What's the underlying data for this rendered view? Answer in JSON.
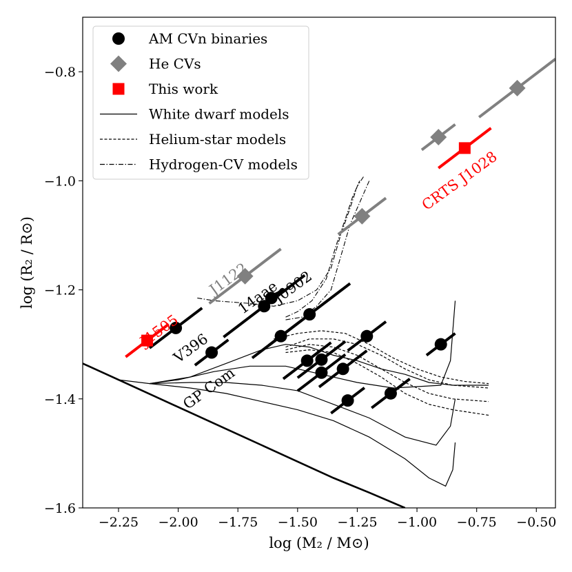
{
  "chart_data": {
    "type": "scatter",
    "title": "",
    "xlabel": "log (M₂ / M⊙)",
    "ylabel": "log (R₂ / R⊙)",
    "xlim": [
      -2.4,
      -0.42
    ],
    "ylim": [
      -1.6,
      -0.7
    ],
    "x_ticks": [
      -2.25,
      -2.0,
      -1.75,
      -1.5,
      -1.25,
      -1.0,
      -0.75,
      -0.5
    ],
    "x_tick_labels": [
      "−2.25",
      "−2.00",
      "−1.75",
      "−1.50",
      "−1.25",
      "−1.00",
      "−0.75",
      "−0.50"
    ],
    "y_ticks": [
      -1.6,
      -1.4,
      -1.2,
      -1.0,
      -0.8
    ],
    "y_tick_labels": [
      "−1.6",
      "−1.4",
      "−1.2",
      "−1.0",
      "−0.8"
    ],
    "legend": {
      "placement": "top-left",
      "entries": [
        {
          "label": "AM CVn binaries",
          "marker": "circle",
          "color": "#000000"
        },
        {
          "label": "He CVs",
          "marker": "diamond",
          "color": "#808080"
        },
        {
          "label": "This work",
          "marker": "square",
          "color": "#ff0000"
        },
        {
          "label": "White dwarf models",
          "line": "solid",
          "color": "#000000"
        },
        {
          "label": "Helium-star models",
          "line": "dashed",
          "color": "#000000"
        },
        {
          "label": "Hydrogen-CV models",
          "line": "dashdot",
          "color": "#000000"
        }
      ]
    },
    "series": [
      {
        "name": "AM CVn binaries",
        "marker": "circle",
        "color": "#000000",
        "points": [
          {
            "x": -2.01,
            "y": -1.27,
            "err": 0.11
          },
          {
            "x": -1.86,
            "y": -1.315,
            "err": 0.07
          },
          {
            "x": -1.64,
            "y": -1.23,
            "err": 0.17
          },
          {
            "x": -1.61,
            "y": -1.215,
            "err": 0.05
          },
          {
            "x": -1.57,
            "y": -1.285,
            "err": 0.12
          },
          {
            "x": -1.45,
            "y": -1.245,
            "err": 0.17
          },
          {
            "x": -1.46,
            "y": -1.33,
            "err": 0.1
          },
          {
            "x": -1.4,
            "y": -1.328,
            "err": 0.1
          },
          {
            "x": -1.4,
            "y": -1.352,
            "err": 0.1
          },
          {
            "x": -1.31,
            "y": -1.345,
            "err": 0.1
          },
          {
            "x": -1.21,
            "y": -1.285,
            "err": 0.08
          },
          {
            "x": -1.29,
            "y": -1.403,
            "err": 0.07
          },
          {
            "x": -1.11,
            "y": -1.39,
            "err": 0.08
          },
          {
            "x": -0.9,
            "y": -1.3,
            "err": 0.06
          }
        ]
      },
      {
        "name": "He CVs",
        "marker": "diamond",
        "color": "#808080",
        "points": [
          {
            "x": -1.72,
            "y": -1.175,
            "err": 0.15
          },
          {
            "x": -1.23,
            "y": -1.065,
            "err": 0.1
          },
          {
            "x": -0.91,
            "y": -0.92,
            "err": 0.07
          },
          {
            "x": -0.58,
            "y": -0.83,
            "err": 0.16
          }
        ]
      },
      {
        "name": "This work",
        "marker": "square",
        "color": "#ff0000",
        "points": [
          {
            "x": -2.13,
            "y": -1.293,
            "err": 0.09
          },
          {
            "x": -0.8,
            "y": -0.94,
            "err": 0.11
          }
        ]
      }
    ],
    "models": {
      "white_dwarf": [
        [
          [
            -2.4,
            -1.335
          ],
          [
            -2.25,
            -1.365
          ],
          [
            -2.1,
            -1.395
          ],
          [
            -1.95,
            -1.425
          ],
          [
            -1.8,
            -1.455
          ],
          [
            -1.65,
            -1.485
          ],
          [
            -1.5,
            -1.515
          ],
          [
            -1.35,
            -1.545
          ],
          [
            -1.2,
            -1.572
          ],
          [
            -1.05,
            -1.6
          ]
        ],
        [
          [
            -2.25,
            -1.365
          ],
          [
            -2.12,
            -1.372
          ],
          [
            -2.0,
            -1.365
          ],
          [
            -1.85,
            -1.35
          ],
          [
            -1.7,
            -1.34
          ],
          [
            -1.55,
            -1.34
          ],
          [
            -1.4,
            -1.355
          ],
          [
            -1.25,
            -1.37
          ],
          [
            -1.1,
            -1.38
          ],
          [
            -0.9,
            -1.375
          ],
          [
            -0.86,
            -1.33
          ],
          [
            -0.84,
            -1.22
          ]
        ],
        [
          [
            -2.12,
            -1.372
          ],
          [
            -1.95,
            -1.37
          ],
          [
            -1.8,
            -1.37
          ],
          [
            -1.65,
            -1.375
          ],
          [
            -1.5,
            -1.385
          ],
          [
            -1.35,
            -1.41
          ],
          [
            -1.2,
            -1.435
          ],
          [
            -1.05,
            -1.47
          ],
          [
            -0.92,
            -1.485
          ],
          [
            -0.86,
            -1.45
          ],
          [
            -0.84,
            -1.4
          ]
        ],
        [
          [
            -2.12,
            -1.372
          ],
          [
            -1.95,
            -1.38
          ],
          [
            -1.8,
            -1.39
          ],
          [
            -1.65,
            -1.405
          ],
          [
            -1.5,
            -1.42
          ],
          [
            -1.35,
            -1.44
          ],
          [
            -1.2,
            -1.47
          ],
          [
            -1.05,
            -1.51
          ],
          [
            -0.95,
            -1.545
          ],
          [
            -0.88,
            -1.56
          ],
          [
            -0.85,
            -1.53
          ],
          [
            -0.84,
            -1.48
          ]
        ],
        [
          [
            -2.12,
            -1.372
          ],
          [
            -1.95,
            -1.36
          ],
          [
            -1.8,
            -1.335
          ],
          [
            -1.65,
            -1.31
          ],
          [
            -1.55,
            -1.3
          ],
          [
            -1.45,
            -1.305
          ],
          [
            -1.35,
            -1.32
          ],
          [
            -1.25,
            -1.33
          ],
          [
            -1.15,
            -1.345
          ],
          [
            -1.05,
            -1.355
          ],
          [
            -0.95,
            -1.37
          ],
          [
            -0.85,
            -1.375
          ],
          [
            -0.7,
            -1.375
          ]
        ]
      ],
      "helium_star": [
        [
          [
            -1.6,
            -1.29
          ],
          [
            -1.5,
            -1.28
          ],
          [
            -1.4,
            -1.275
          ],
          [
            -1.3,
            -1.28
          ],
          [
            -1.2,
            -1.3
          ],
          [
            -1.1,
            -1.325
          ],
          [
            -1.0,
            -1.345
          ],
          [
            -0.9,
            -1.36
          ],
          [
            -0.8,
            -1.368
          ],
          [
            -0.7,
            -1.372
          ]
        ],
        [
          [
            -1.55,
            -1.305
          ],
          [
            -1.45,
            -1.29
          ],
          [
            -1.35,
            -1.29
          ],
          [
            -1.25,
            -1.3
          ],
          [
            -1.15,
            -1.32
          ],
          [
            -1.05,
            -1.345
          ],
          [
            -0.95,
            -1.365
          ],
          [
            -0.85,
            -1.375
          ],
          [
            -0.7,
            -1.38
          ]
        ],
        [
          [
            -1.55,
            -1.31
          ],
          [
            -1.45,
            -1.3
          ],
          [
            -1.35,
            -1.305
          ],
          [
            -1.25,
            -1.32
          ],
          [
            -1.15,
            -1.345
          ],
          [
            -1.05,
            -1.37
          ],
          [
            -0.95,
            -1.39
          ],
          [
            -0.85,
            -1.4
          ],
          [
            -0.7,
            -1.405
          ]
        ],
        [
          [
            -1.55,
            -1.315
          ],
          [
            -1.45,
            -1.31
          ],
          [
            -1.35,
            -1.315
          ],
          [
            -1.25,
            -1.335
          ],
          [
            -1.15,
            -1.36
          ],
          [
            -1.05,
            -1.39
          ],
          [
            -0.95,
            -1.41
          ],
          [
            -0.85,
            -1.42
          ],
          [
            -0.7,
            -1.43
          ]
        ]
      ],
      "hydrogen_cv": [
        [
          [
            -1.92,
            -1.215
          ],
          [
            -1.85,
            -1.22
          ],
          [
            -1.7,
            -1.225
          ],
          [
            -1.6,
            -1.23
          ],
          [
            -1.5,
            -1.22
          ],
          [
            -1.42,
            -1.2
          ],
          [
            -1.36,
            -1.16
          ],
          [
            -1.32,
            -1.1
          ],
          [
            -1.28,
            -1.05
          ],
          [
            -1.25,
            -1.01
          ],
          [
            -1.22,
            -0.99
          ]
        ],
        [
          [
            -1.55,
            -1.25
          ],
          [
            -1.5,
            -1.24
          ],
          [
            -1.44,
            -1.22
          ],
          [
            -1.38,
            -1.18
          ],
          [
            -1.34,
            -1.12
          ],
          [
            -1.3,
            -1.07
          ],
          [
            -1.27,
            -1.03
          ],
          [
            -1.24,
            -1.0
          ]
        ],
        [
          [
            -1.55,
            -1.255
          ],
          [
            -1.48,
            -1.25
          ],
          [
            -1.42,
            -1.23
          ],
          [
            -1.36,
            -1.2
          ],
          [
            -1.32,
            -1.14
          ],
          [
            -1.28,
            -1.08
          ],
          [
            -1.24,
            -1.04
          ],
          [
            -1.2,
            -1.0
          ]
        ]
      ]
    },
    "annotations": [
      {
        "text": "J1505",
        "x": -2.14,
        "y": -1.305,
        "angle": -36,
        "color": "#ff0000"
      },
      {
        "text": "V396",
        "x": -2.0,
        "y": -1.335,
        "angle": -36,
        "color": "#000000"
      },
      {
        "text": "J1122",
        "x": -1.85,
        "y": -1.21,
        "angle": -36,
        "color": "#808080"
      },
      {
        "text": "14aae",
        "x": -1.73,
        "y": -1.245,
        "angle": -36,
        "color": "#000000"
      },
      {
        "text": "J0902",
        "x": -1.58,
        "y": -1.225,
        "angle": -36,
        "color": "#000000"
      },
      {
        "text": "GP Com",
        "x": -1.96,
        "y": -1.42,
        "angle": -36,
        "color": "#000000"
      },
      {
        "text": "CRTS J1028",
        "x": -0.96,
        "y": -1.055,
        "angle": -36,
        "color": "#ff0000"
      }
    ]
  }
}
